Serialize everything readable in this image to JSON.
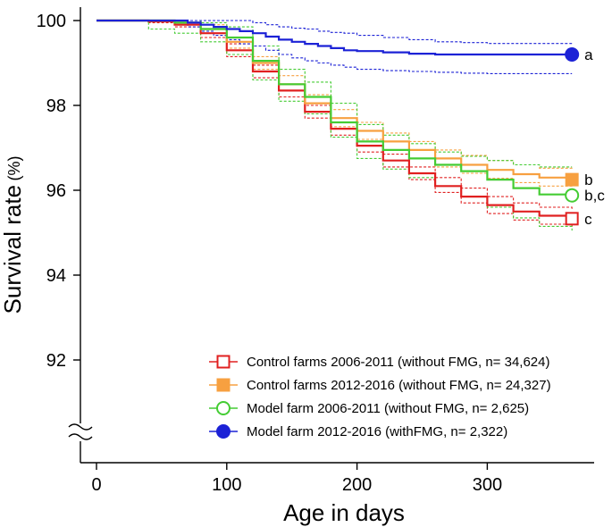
{
  "chart_data": {
    "type": "line",
    "title": "",
    "xlabel": "Age in days",
    "ylabel": "Survival rate",
    "ylabel_unit": "(%)",
    "xlim": [
      0,
      380
    ],
    "ylim": [
      90,
      100
    ],
    "y_axis_break": true,
    "x_ticks": [
      0,
      100,
      200,
      300
    ],
    "y_ticks": [
      92,
      94,
      96,
      98,
      100
    ],
    "grid": false,
    "legend_position": "bottom-right",
    "series": [
      {
        "name": "Control farms 2006-2011 (without FMG, n= 34,624)",
        "color": "#e02020",
        "marker": "open-square",
        "end_label": "c",
        "x": [
          0,
          20,
          40,
          60,
          80,
          100,
          120,
          140,
          160,
          180,
          200,
          220,
          240,
          260,
          280,
          300,
          320,
          340,
          365
        ],
        "y": [
          100,
          100,
          99.98,
          99.9,
          99.7,
          99.3,
          98.8,
          98.35,
          97.85,
          97.45,
          97.05,
          96.7,
          96.4,
          96.1,
          95.85,
          95.65,
          95.5,
          95.4,
          95.33
        ],
        "ci_upper": [
          100,
          100,
          100,
          99.95,
          99.8,
          99.45,
          98.95,
          98.5,
          98.0,
          97.6,
          97.2,
          96.85,
          96.55,
          96.3,
          96.05,
          95.85,
          95.7,
          95.6,
          95.55
        ],
        "ci_lower": [
          100,
          100,
          99.95,
          99.85,
          99.6,
          99.15,
          98.65,
          98.2,
          97.7,
          97.3,
          96.9,
          96.55,
          96.25,
          95.95,
          95.7,
          95.45,
          95.3,
          95.2,
          95.1
        ]
      },
      {
        "name": "Control farms 2012-2016 (without FMG, n= 24,327)",
        "color": "#f7a040",
        "marker": "filled-square",
        "end_label": "b",
        "x": [
          0,
          20,
          40,
          60,
          80,
          100,
          120,
          140,
          160,
          180,
          200,
          220,
          240,
          260,
          280,
          300,
          320,
          340,
          365
        ],
        "y": [
          100,
          100,
          100,
          99.95,
          99.8,
          99.5,
          99.0,
          98.5,
          98.05,
          97.7,
          97.4,
          97.15,
          96.95,
          96.75,
          96.6,
          96.48,
          96.38,
          96.3,
          96.25
        ],
        "ci_upper": [
          100,
          100,
          100,
          100,
          99.9,
          99.6,
          99.15,
          98.7,
          98.25,
          97.9,
          97.6,
          97.35,
          97.15,
          96.95,
          96.82,
          96.7,
          96.6,
          96.52,
          96.48
        ],
        "ci_lower": [
          100,
          100,
          99.97,
          99.9,
          99.7,
          99.35,
          98.85,
          98.35,
          97.85,
          97.5,
          97.2,
          96.95,
          96.75,
          96.55,
          96.4,
          96.28,
          96.18,
          96.1,
          96.02
        ]
      },
      {
        "name": "Model farm 2006-2011 (without FMG, n= 2,625)",
        "color": "#44cc33",
        "marker": "open-circle",
        "end_label": "b,c",
        "x": [
          0,
          20,
          40,
          60,
          80,
          100,
          120,
          140,
          160,
          180,
          200,
          220,
          240,
          260,
          280,
          300,
          320,
          340,
          365
        ],
        "y": [
          100,
          100,
          100,
          99.95,
          99.8,
          99.6,
          99.05,
          98.5,
          98.2,
          97.6,
          97.15,
          96.95,
          96.75,
          96.6,
          96.45,
          96.25,
          96.05,
          95.9,
          95.88
        ],
        "ci_upper": [
          100,
          100,
          100,
          100,
          99.95,
          99.85,
          99.4,
          98.85,
          98.55,
          98.05,
          97.55,
          97.3,
          97.1,
          96.9,
          96.8,
          96.7,
          96.6,
          96.55,
          96.55
        ],
        "ci_lower": [
          100,
          100,
          99.8,
          99.7,
          99.5,
          99.2,
          98.6,
          98.1,
          97.8,
          97.25,
          96.75,
          96.5,
          96.3,
          96.1,
          95.85,
          95.6,
          95.35,
          95.15,
          95.05
        ]
      },
      {
        "name": "Model farm 2012-2016 (withFMG, n= 2,322)",
        "color": "#1c22d6",
        "marker": "filled-circle",
        "end_label": "a",
        "x": [
          0,
          20,
          40,
          60,
          70,
          80,
          90,
          100,
          110,
          120,
          130,
          140,
          150,
          160,
          170,
          180,
          190,
          200,
          220,
          240,
          260,
          280,
          300,
          320,
          340,
          365
        ],
        "y": [
          100,
          100,
          100,
          100,
          99.95,
          99.9,
          99.85,
          99.8,
          99.75,
          99.7,
          99.62,
          99.55,
          99.5,
          99.45,
          99.4,
          99.35,
          99.3,
          99.28,
          99.25,
          99.22,
          99.2,
          99.2,
          99.2,
          99.2,
          99.2,
          99.2
        ],
        "ci_upper": [
          100,
          100,
          100,
          100,
          100,
          100,
          100,
          100,
          100,
          99.95,
          99.9,
          99.85,
          99.82,
          99.8,
          99.75,
          99.72,
          99.7,
          99.65,
          99.6,
          99.55,
          99.5,
          99.48,
          99.46,
          99.46,
          99.46,
          99.46
        ],
        "ci_lower": [
          100,
          100,
          100,
          99.9,
          99.85,
          99.75,
          99.65,
          99.55,
          99.45,
          99.4,
          99.3,
          99.2,
          99.12,
          99.05,
          99.0,
          98.95,
          98.9,
          98.85,
          98.82,
          98.8,
          98.78,
          98.76,
          98.75,
          98.75,
          98.75,
          98.75
        ]
      }
    ]
  }
}
